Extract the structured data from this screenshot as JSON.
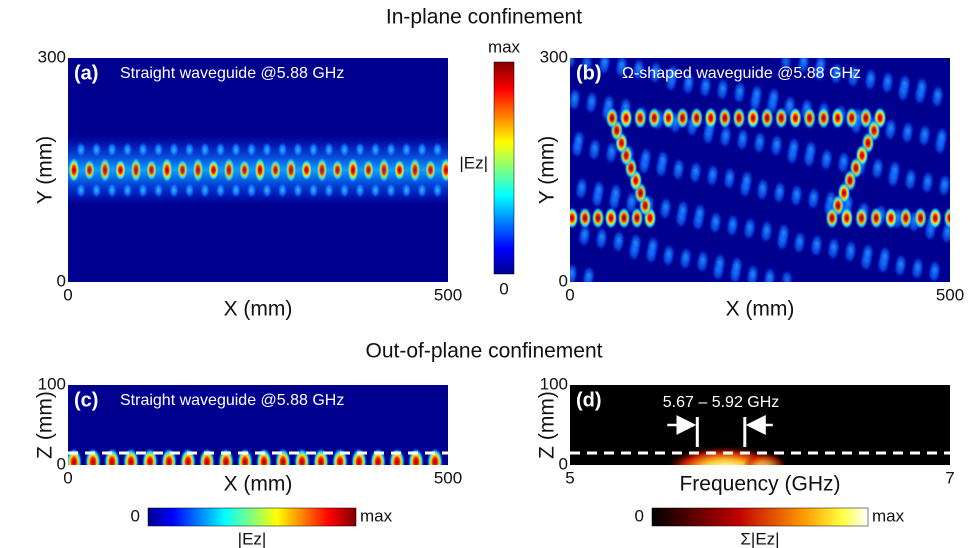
{
  "sections": [
    "In-plane confinement",
    "Out-of-plane confinement"
  ],
  "chart_data": [
    {
      "type": "heatmap",
      "label": "(a)",
      "title": "Straight waveguide @5.88 GHz",
      "xlabel": "X (mm)",
      "ylabel": "Y (mm)",
      "xlim": [
        0,
        500
      ],
      "ylim": [
        0,
        300
      ],
      "xticks": [
        0,
        500
      ],
      "yticks": [
        0,
        300
      ],
      "colormap": "jet"
    },
    {
      "type": "heatmap",
      "label": "(b)",
      "title": "Ω-shaped waveguide @5.88 GHz",
      "xlabel": "X (mm)",
      "ylabel": "Y (mm)",
      "xlim": [
        0,
        500
      ],
      "ylim": [
        0,
        300
      ],
      "xticks": [
        0,
        500
      ],
      "yticks": [
        0,
        300
      ],
      "colormap": "jet"
    },
    {
      "type": "heatmap",
      "label": "(c)",
      "title": "Straight waveguide @5.88 GHz",
      "xlabel": "X (mm)",
      "ylabel": "Z (mm)",
      "xlim": [
        0,
        500
      ],
      "ylim": [
        0,
        100
      ],
      "xticks": [
        0,
        500
      ],
      "yticks": [
        0,
        100
      ],
      "hline": 15,
      "colormap": "jet"
    },
    {
      "type": "heatmap",
      "label": "(d)",
      "xlabel": "Frequency (GHz)",
      "ylabel": "Z (mm)",
      "xlim": [
        5,
        7
      ],
      "ylim": [
        0,
        100
      ],
      "xticks": [
        5,
        7
      ],
      "yticks": [
        0,
        100
      ],
      "hline": 15,
      "annotation": "5.67 – 5.92 GHz",
      "band": [
        5.67,
        5.92
      ],
      "colormap": "hot"
    }
  ],
  "colorbars": [
    {
      "min_label": "0",
      "max_label": "max",
      "label": "|Ez|",
      "colormap": "jet"
    },
    {
      "min_label": "0",
      "max_label": "max",
      "label": "|Ez|",
      "colormap": "jet"
    },
    {
      "min_label": "0",
      "max_label": "max",
      "label": "Σ|Ez|",
      "colormap": "hot"
    }
  ]
}
